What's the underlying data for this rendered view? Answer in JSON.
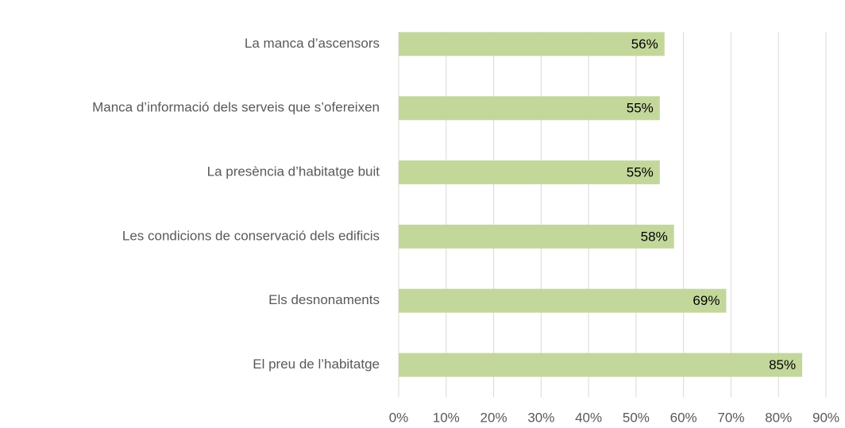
{
  "chart_data": {
    "type": "hbar",
    "categories": [
      "La manca d’ascensors",
      "Manca d’informació dels serveis que s’ofereixen",
      "La presència d’habitatge buit",
      "Les condicions de conservació dels edificis",
      "Els desnonaments",
      "El preu de l’habitatge"
    ],
    "values": [
      56,
      55,
      55,
      58,
      69,
      85
    ],
    "value_labels": [
      "56%",
      "55%",
      "55%",
      "58%",
      "69%",
      "85%"
    ],
    "color": "#c4d79b",
    "xlim": [
      0,
      90
    ],
    "xticks": [
      {
        "value": 0,
        "label": "0%"
      },
      {
        "value": 10,
        "label": "10%"
      },
      {
        "value": 20,
        "label": "20%"
      },
      {
        "value": 30,
        "label": "30%"
      },
      {
        "value": 40,
        "label": "40%"
      },
      {
        "value": 50,
        "label": "50%"
      },
      {
        "value": 60,
        "label": "60%"
      },
      {
        "value": 70,
        "label": "70%"
      },
      {
        "value": 80,
        "label": "80%"
      },
      {
        "value": 90,
        "label": "90%"
      }
    ],
    "grid": true
  }
}
